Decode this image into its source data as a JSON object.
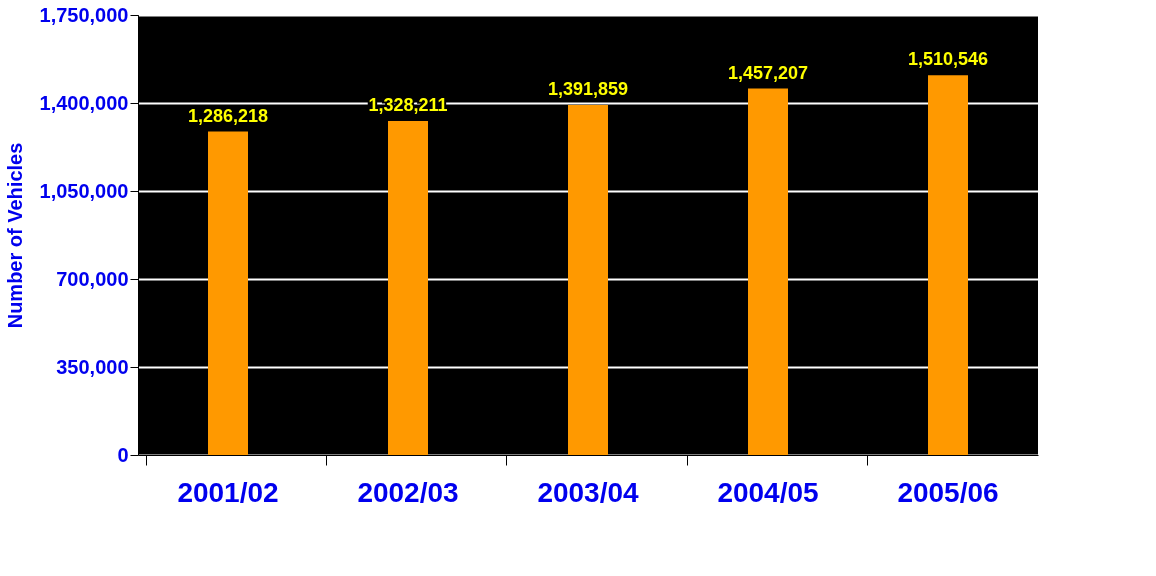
{
  "chart_data": {
    "type": "bar",
    "ylabel": "Number of Vehicles",
    "categories": [
      "2001/02",
      "2002/03",
      "2003/04",
      "2004/05",
      "2005/06"
    ],
    "values": [
      1286218,
      1328211,
      1391859,
      1457207,
      1510546
    ],
    "value_labels": [
      "1,286,218",
      "1,328,211",
      "1,391,859",
      "1,457,207",
      "1,510,546"
    ],
    "color": "#ff9900",
    "ylim": [
      0,
      1750000
    ],
    "yticks": [
      0,
      {
        "value": 350000,
        "label": "350,000"
      },
      {
        "value": 700000,
        "label": "700,000"
      },
      {
        "value": 1050000,
        "label": "1,050,000"
      },
      {
        "value": 1400000,
        "label": "1,400,000"
      },
      {
        "value": 1750000,
        "label": "1,750,000"
      }
    ],
    "grid": "y"
  }
}
